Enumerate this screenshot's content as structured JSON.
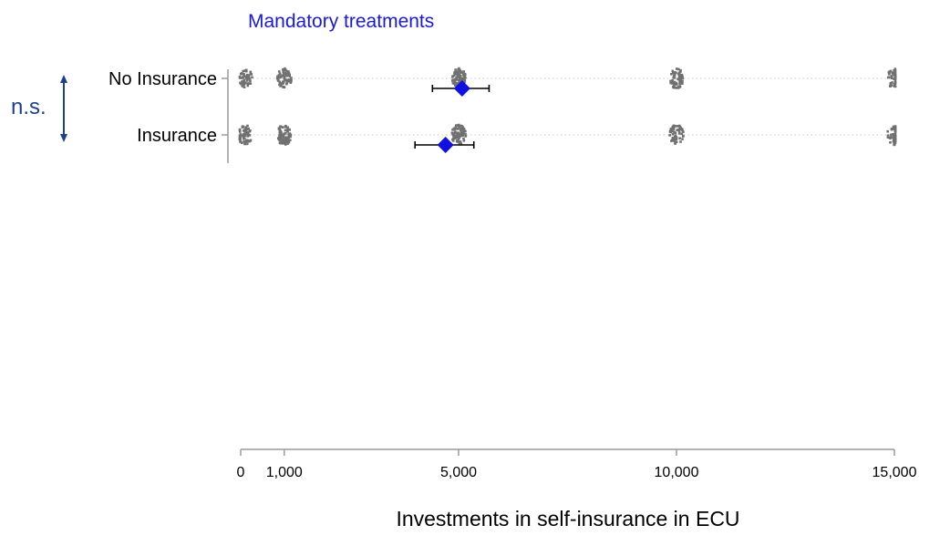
{
  "chart_data": {
    "type": "scatter",
    "title": "Mandatory treatments",
    "xlabel": "Investments in self-insurance in ECU",
    "ylabel": "",
    "xlim": [
      0,
      15000
    ],
    "x_ticks": [
      0,
      1000,
      5000,
      10000,
      15000
    ],
    "x_tick_labels": [
      "0",
      "1,000",
      "5,000",
      "10,000",
      "15,000"
    ],
    "categories": [
      "No Insurance",
      "Insurance"
    ],
    "significance_label": "n.s.",
    "colors": {
      "title": "#1a1ad6",
      "mean_marker": "#1010e0",
      "points": "#707070",
      "bracket": "#1f3f8f"
    },
    "grid": "dotted horizontal lines per category",
    "series": [
      {
        "category": "No Insurance",
        "mean": 5080,
        "ci": [
          4400,
          5700
        ],
        "point_clusters": [
          {
            "x": 100,
            "n": 55
          },
          {
            "x": 1000,
            "n": 75
          },
          {
            "x": 5000,
            "n": 85
          },
          {
            "x": 10000,
            "n": 70
          },
          {
            "x": 15000,
            "n": 45
          }
        ]
      },
      {
        "category": "Insurance",
        "mean": 4700,
        "ci": [
          4000,
          5350
        ],
        "point_clusters": [
          {
            "x": 100,
            "n": 60
          },
          {
            "x": 1000,
            "n": 85
          },
          {
            "x": 5000,
            "n": 80
          },
          {
            "x": 10000,
            "n": 55
          },
          {
            "x": 15000,
            "n": 50
          }
        ]
      }
    ]
  }
}
